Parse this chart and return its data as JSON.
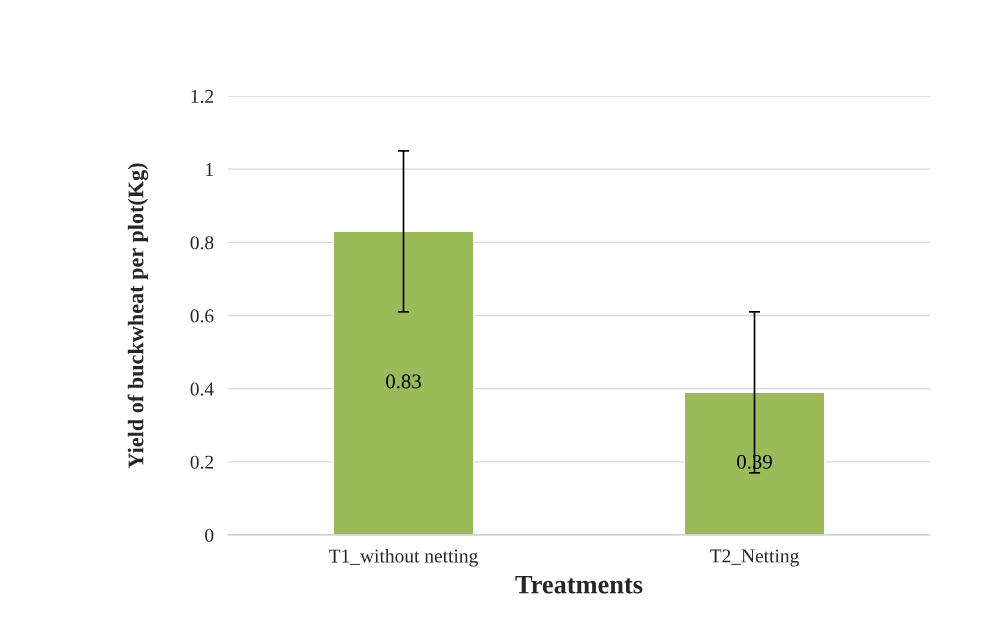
{
  "chart_data": {
    "type": "bar",
    "xlabel": "Treatments",
    "ylabel": "Yield of buckwheat per plot(Kg)",
    "categories": [
      "T1_without netting",
      "T2_Netting"
    ],
    "values": [
      0.83,
      0.39
    ],
    "errors": [
      0.22,
      0.22
    ],
    "color": "#9bbb59",
    "ylim": [
      0,
      1.2
    ],
    "yticks": [
      0,
      0.2,
      0.4,
      0.6,
      0.8,
      1,
      1.2
    ],
    "grid": "y",
    "data_labels": true
  }
}
